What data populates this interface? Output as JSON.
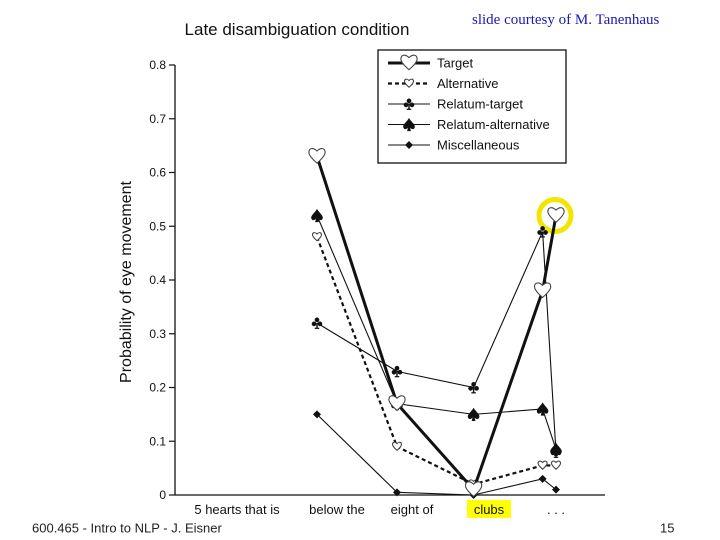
{
  "slide": {
    "credit": "slide courtesy of M. Tanenhaus",
    "footer_left": "600.465 - Intro to NLP - J. Eisner",
    "page_number": "15"
  },
  "chart_data": {
    "type": "line",
    "title": "Late disambiguation condition",
    "xlabel": "",
    "ylabel": "Probability of eye movement",
    "ylim": [
      0,
      0.8
    ],
    "yticks": [
      "0",
      "0.1",
      "0.2",
      "0.3",
      "0.4",
      "0.5",
      "0.6",
      "0.7",
      "0.8"
    ],
    "categories": [
      "5 hearts that is",
      "below the",
      "eight of",
      "clubs",
      ". . ."
    ],
    "highlighted_category": "clubs",
    "highlight_color": "#ffff00",
    "highlighted_point": {
      "series": "Target",
      "x": 4.8,
      "y": 0.52
    },
    "highlight_ring_color": "#f2e600",
    "series": [
      {
        "name": "Target",
        "marker": "heart-open",
        "style": "thick-solid",
        "x": [
          0.8,
          1.8,
          2.8,
          3.8,
          4.8
        ],
        "y": [
          0.63,
          0.17,
          0.01,
          0.38,
          0.52
        ]
      },
      {
        "name": "Alternative",
        "marker": "heart-open-small",
        "style": "dashed",
        "x": [
          0.8,
          1.8,
          2.8,
          3.8,
          4.8
        ],
        "y": [
          0.48,
          0.09,
          0.02,
          0.055,
          0.055
        ]
      },
      {
        "name": "Relatum-target",
        "marker": "club",
        "style": "thin-solid",
        "x": [
          0.8,
          1.8,
          2.8,
          3.8,
          4.8
        ],
        "y": [
          0.32,
          0.23,
          0.2,
          0.49,
          0.08
        ]
      },
      {
        "name": "Relatum-alternative",
        "marker": "spade",
        "style": "thin-solid",
        "x": [
          0.8,
          1.8,
          2.8,
          3.8,
          4.8
        ],
        "y": [
          0.52,
          0.17,
          0.15,
          0.16,
          0.085
        ]
      },
      {
        "name": "Miscellaneous",
        "marker": "diamond",
        "style": "thin-solid",
        "x": [
          0.8,
          1.8,
          2.8,
          3.8,
          4.8
        ],
        "y": [
          0.15,
          0.005,
          0.0,
          0.03,
          0.01
        ]
      }
    ],
    "legend_position": "top-right",
    "grid": false
  }
}
